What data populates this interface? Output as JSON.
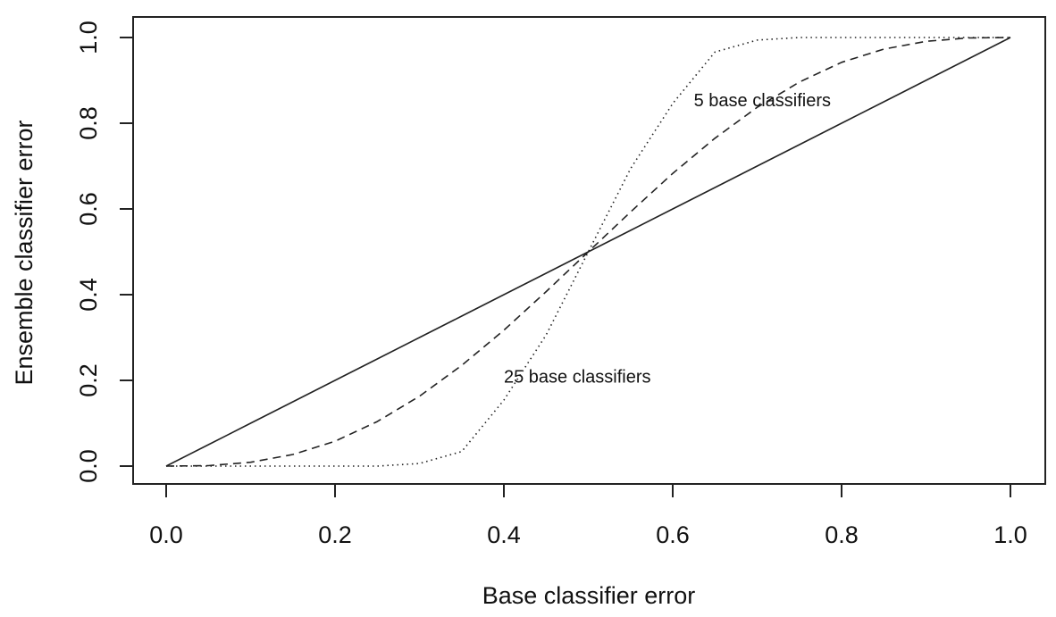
{
  "chart_data": {
    "type": "line",
    "title": "",
    "xlabel": "Base classifier error",
    "ylabel": "Ensemble classifier error",
    "xlim": [
      0,
      1
    ],
    "ylim": [
      0,
      1
    ],
    "x_ticks": [
      "0.0",
      "0.2",
      "0.4",
      "0.6",
      "0.8",
      "1.0"
    ],
    "y_ticks": [
      "0.0",
      "0.2",
      "0.4",
      "0.6",
      "0.8",
      "1.0"
    ],
    "grid": false,
    "x": [
      0.0,
      0.05,
      0.1,
      0.15,
      0.2,
      0.25,
      0.3,
      0.35,
      0.4,
      0.45,
      0.5,
      0.55,
      0.6,
      0.65,
      0.7,
      0.75,
      0.8,
      0.85,
      0.9,
      0.95,
      1.0
    ],
    "series": [
      {
        "style": "solid",
        "values": [
          0.0,
          0.05,
          0.1,
          0.15,
          0.2,
          0.25,
          0.3,
          0.35,
          0.4,
          0.45,
          0.5,
          0.55,
          0.6,
          0.65,
          0.7,
          0.75,
          0.8,
          0.85,
          0.9,
          0.95,
          1.0
        ]
      },
      {
        "style": "dashed",
        "values": [
          0.0,
          0.001,
          0.009,
          0.027,
          0.058,
          0.104,
          0.163,
          0.235,
          0.317,
          0.407,
          0.5,
          0.593,
          0.683,
          0.765,
          0.837,
          0.896,
          0.942,
          0.973,
          0.991,
          0.999,
          1.0
        ]
      },
      {
        "style": "dotted",
        "values": [
          0.0,
          0.0,
          0.0,
          0.0,
          0.0,
          0.0,
          0.006,
          0.034,
          0.154,
          0.306,
          0.5,
          0.694,
          0.846,
          0.966,
          0.994,
          1.0,
          1.0,
          1.0,
          1.0,
          1.0,
          1.0
        ]
      }
    ],
    "annotations": [
      {
        "text": "5 base classifiers",
        "x": 0.625,
        "y": 0.84
      },
      {
        "text": "25 base classifiers",
        "x": 0.4,
        "y": 0.195
      }
    ]
  }
}
